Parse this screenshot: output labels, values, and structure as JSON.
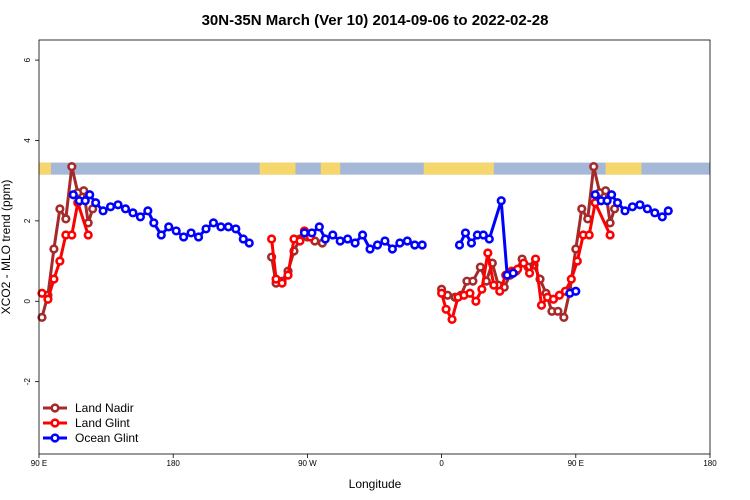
{
  "chart_data": {
    "type": "line",
    "title": "30N-35N March (Ver 10)   2014-09-06 to 2022-02-28",
    "xlabel": "Longitude",
    "ylabel": "XCO2 - MLO trend (ppm)",
    "xlim": [
      90,
      540
    ],
    "ylim": [
      -3.8,
      6.5
    ],
    "x_ticks": [
      {
        "value": 90,
        "label": "90 E"
      },
      {
        "value": 180,
        "label": "180"
      },
      {
        "value": 270,
        "label": "90 W"
      },
      {
        "value": 360,
        "label": "0"
      },
      {
        "value": 450,
        "label": "90 E"
      },
      {
        "value": 540,
        "label": "180"
      }
    ],
    "y_ticks": [
      {
        "value": -2,
        "label": "-2"
      },
      {
        "value": 0,
        "label": "0"
      },
      {
        "value": 2,
        "label": "2"
      },
      {
        "value": 4,
        "label": "4"
      },
      {
        "value": 6,
        "label": "6"
      }
    ],
    "legend_position": "bottom-left",
    "colors": {
      "land_nadir": "#a52a2a",
      "land_glint": "#ff0000",
      "ocean_glint": "#0000ff",
      "band_ocean": "#a5b8d8",
      "band_land": "#f5d76e"
    },
    "land_ocean_band": {
      "y_range": [
        3.15,
        3.45
      ],
      "land_segments": [
        [
          90,
          98
        ],
        [
          238,
          262
        ],
        [
          279,
          292
        ],
        [
          348,
          395
        ],
        [
          470,
          494
        ]
      ]
    },
    "series": [
      {
        "name": "Land Nadir",
        "key": "land_nadir",
        "segments": [
          [
            [
              92,
              -0.4
            ],
            [
              96,
              0.15
            ],
            [
              100,
              1.3
            ],
            [
              104,
              2.3
            ],
            [
              108,
              2.05
            ],
            [
              112,
              3.35
            ],
            [
              116,
              2.7
            ],
            [
              120,
              2.75
            ],
            [
              123,
              1.95
            ],
            [
              126,
              2.3
            ]
          ],
          [
            [
              246,
              1.1
            ],
            [
              249,
              0.45
            ],
            [
              253,
              0.5
            ],
            [
              257,
              0.75
            ],
            [
              261,
              1.25
            ],
            [
              265,
              1.55
            ],
            [
              270,
              1.6
            ],
            [
              275,
              1.5
            ],
            [
              280,
              1.45
            ]
          ],
          [
            [
              360,
              0.3
            ],
            [
              364,
              0.15
            ],
            [
              369,
              0.1
            ],
            [
              373,
              0.15
            ],
            [
              377,
              0.5
            ],
            [
              381,
              0.5
            ],
            [
              386,
              0.85
            ],
            [
              390,
              0.5
            ],
            [
              394,
              0.95
            ],
            [
              398,
              0.4
            ],
            [
              402,
              0.35
            ],
            [
              406,
              0.65
            ],
            [
              410,
              0.75
            ],
            [
              414,
              1.05
            ],
            [
              418,
              0.85
            ],
            [
              422,
              0.9
            ],
            [
              426,
              0.55
            ],
            [
              430,
              0.2
            ],
            [
              434,
              -0.25
            ],
            [
              438,
              -0.25
            ],
            [
              442,
              -0.4
            ],
            [
              446,
              0.25
            ],
            [
              450,
              1.3
            ],
            [
              454,
              2.3
            ],
            [
              458,
              2.05
            ],
            [
              462,
              3.35
            ],
            [
              466,
              2.7
            ],
            [
              470,
              2.75
            ],
            [
              473,
              1.95
            ],
            [
              476,
              2.3
            ]
          ]
        ]
      },
      {
        "name": "Land Glint",
        "key": "land_glint",
        "segments": [
          [
            [
              92,
              0.2
            ],
            [
              96,
              0.05
            ],
            [
              100,
              0.55
            ],
            [
              104,
              1.0
            ],
            [
              108,
              1.65
            ],
            [
              112,
              1.65
            ],
            [
              116,
              2.45
            ],
            [
              123,
              1.65
            ]
          ],
          [
            [
              246,
              1.55
            ],
            [
              249,
              0.55
            ],
            [
              253,
              0.45
            ],
            [
              257,
              0.65
            ],
            [
              261,
              1.55
            ],
            [
              265,
              1.5
            ],
            [
              268,
              1.75
            ],
            [
              272,
              1.6
            ]
          ],
          [
            [
              360,
              0.2
            ],
            [
              363,
              -0.2
            ],
            [
              367,
              -0.45
            ],
            [
              371,
              0.1
            ],
            [
              375,
              0.15
            ],
            [
              379,
              0.2
            ],
            [
              383,
              0.0
            ],
            [
              387,
              0.3
            ],
            [
              391,
              1.2
            ],
            [
              395,
              0.4
            ],
            [
              399,
              0.25
            ],
            [
              403,
              0.65
            ],
            [
              407,
              0.75
            ],
            [
              411,
              0.8
            ],
            [
              415,
              0.95
            ],
            [
              419,
              0.7
            ],
            [
              423,
              1.05
            ],
            [
              427,
              -0.1
            ],
            [
              431,
              0.1
            ],
            [
              435,
              0.05
            ],
            [
              439,
              0.15
            ],
            [
              443,
              0.25
            ],
            [
              447,
              0.55
            ],
            [
              451,
              1.0
            ],
            [
              455,
              1.65
            ],
            [
              459,
              1.65
            ],
            [
              463,
              2.45
            ],
            [
              473,
              1.65
            ]
          ]
        ]
      },
      {
        "name": "Ocean Glint",
        "key": "ocean_glint",
        "segments": [
          [
            [
              113,
              2.65
            ],
            [
              117,
              2.5
            ],
            [
              121,
              2.5
            ],
            [
              124,
              2.65
            ],
            [
              128,
              2.45
            ],
            [
              133,
              2.25
            ],
            [
              138,
              2.35
            ],
            [
              143,
              2.4
            ],
            [
              148,
              2.3
            ],
            [
              153,
              2.2
            ],
            [
              158,
              2.1
            ],
            [
              163,
              2.25
            ],
            [
              167,
              1.95
            ],
            [
              172,
              1.65
            ],
            [
              177,
              1.85
            ],
            [
              182,
              1.75
            ],
            [
              187,
              1.6
            ],
            [
              192,
              1.7
            ],
            [
              197,
              1.6
            ],
            [
              202,
              1.8
            ],
            [
              207,
              1.95
            ],
            [
              212,
              1.85
            ],
            [
              217,
              1.85
            ],
            [
              222,
              1.8
            ],
            [
              227,
              1.55
            ],
            [
              231,
              1.45
            ]
          ],
          [
            [
              268,
              1.7
            ],
            [
              273,
              1.7
            ],
            [
              278,
              1.85
            ],
            [
              282,
              1.55
            ],
            [
              287,
              1.65
            ],
            [
              292,
              1.5
            ],
            [
              297,
              1.55
            ],
            [
              302,
              1.45
            ],
            [
              307,
              1.65
            ],
            [
              312,
              1.3
            ],
            [
              317,
              1.4
            ],
            [
              322,
              1.5
            ],
            [
              327,
              1.3
            ],
            [
              332,
              1.45
            ],
            [
              337,
              1.5
            ],
            [
              342,
              1.4
            ],
            [
              347,
              1.4
            ]
          ],
          [
            [
              372,
              1.4
            ],
            [
              376,
              1.7
            ],
            [
              380,
              1.45
            ],
            [
              384,
              1.65
            ],
            [
              388,
              1.65
            ],
            [
              392,
              1.55
            ],
            [
              400,
              2.5
            ],
            [
              404,
              0.65
            ],
            [
              408,
              0.7
            ]
          ],
          [
            [
              446,
              0.2
            ],
            [
              450,
              0.25
            ]
          ],
          [
            [
              463,
              2.65
            ],
            [
              467,
              2.5
            ],
            [
              471,
              2.5
            ],
            [
              474,
              2.65
            ],
            [
              478,
              2.45
            ],
            [
              483,
              2.25
            ],
            [
              488,
              2.35
            ],
            [
              493,
              2.4
            ],
            [
              498,
              2.3
            ],
            [
              503,
              2.2
            ],
            [
              508,
              2.1
            ],
            [
              512,
              2.25
            ]
          ]
        ]
      }
    ]
  }
}
